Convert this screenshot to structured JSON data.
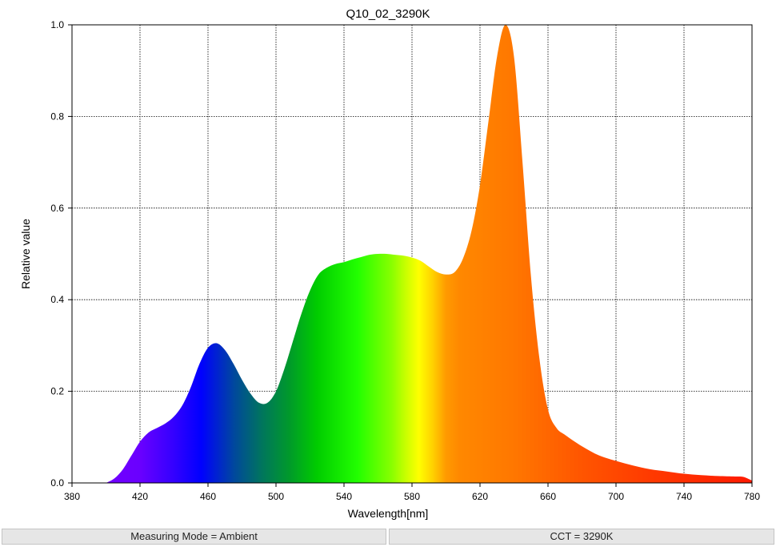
{
  "chart_data": {
    "type": "area",
    "title": "Q10_02_3290K",
    "xlabel": "Wavelength[nm]",
    "ylabel": "Relative value",
    "xlim": [
      380,
      780
    ],
    "ylim": [
      0,
      1.0
    ],
    "x_ticks": [
      380,
      420,
      460,
      500,
      540,
      580,
      620,
      660,
      700,
      740,
      780
    ],
    "y_ticks": [
      0.0,
      0.2,
      0.4,
      0.6,
      0.8,
      1.0
    ],
    "y_tick_labels": [
      "0.0",
      "0.2",
      "0.4",
      "0.6",
      "0.8",
      "1.0"
    ],
    "grid": true,
    "fill": "spectral color gradient",
    "x": [
      400,
      405,
      410,
      415,
      420,
      425,
      430,
      435,
      440,
      445,
      450,
      455,
      460,
      465,
      470,
      475,
      480,
      485,
      490,
      495,
      500,
      505,
      510,
      515,
      520,
      525,
      530,
      535,
      540,
      545,
      550,
      555,
      560,
      565,
      570,
      575,
      580,
      585,
      590,
      595,
      600,
      605,
      610,
      615,
      620,
      625,
      630,
      635,
      640,
      645,
      650,
      655,
      660,
      665,
      670,
      680,
      690,
      700,
      710,
      720,
      730,
      740,
      750,
      760,
      770,
      775,
      780
    ],
    "y": [
      0.0,
      0.01,
      0.03,
      0.06,
      0.09,
      0.11,
      0.12,
      0.13,
      0.145,
      0.17,
      0.21,
      0.26,
      0.295,
      0.305,
      0.29,
      0.26,
      0.225,
      0.195,
      0.175,
      0.175,
      0.2,
      0.25,
      0.31,
      0.37,
      0.42,
      0.455,
      0.47,
      0.478,
      0.482,
      0.488,
      0.493,
      0.498,
      0.5,
      0.5,
      0.498,
      0.496,
      0.492,
      0.485,
      0.472,
      0.46,
      0.455,
      0.46,
      0.49,
      0.55,
      0.65,
      0.79,
      0.93,
      1.0,
      0.93,
      0.7,
      0.45,
      0.27,
      0.16,
      0.12,
      0.105,
      0.08,
      0.06,
      0.048,
      0.038,
      0.03,
      0.025,
      0.02,
      0.017,
      0.015,
      0.014,
      0.013,
      0.005
    ]
  },
  "status": {
    "measuring_mode": "Measuring Mode = Ambient",
    "cct": "CCT = 3290K"
  }
}
